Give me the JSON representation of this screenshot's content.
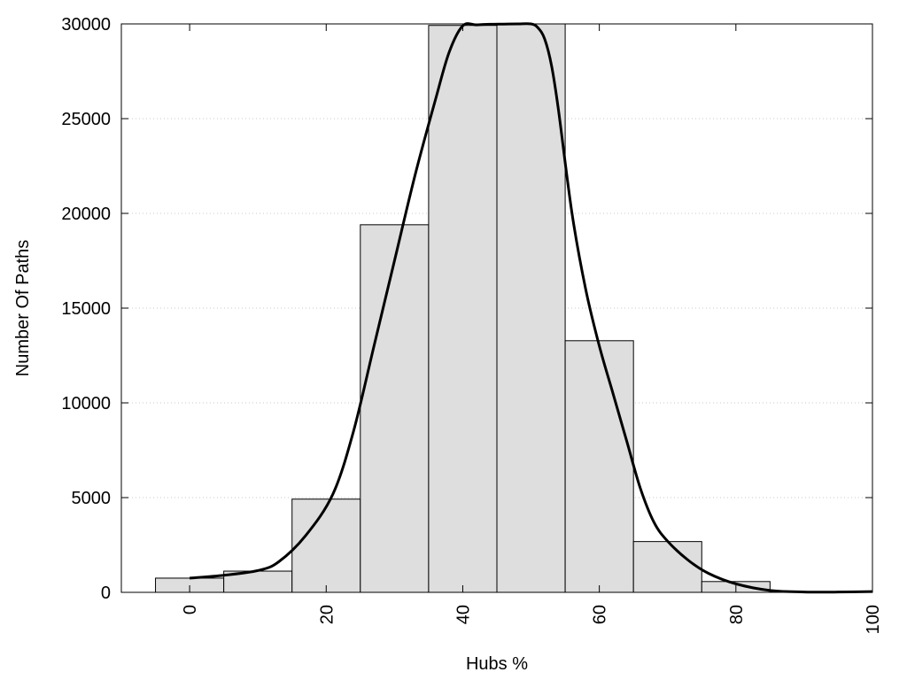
{
  "chart_data": {
    "type": "bar",
    "title": "",
    "xlabel": "Hubs %",
    "ylabel": "Number Of Paths",
    "xlim": [
      -10,
      100
    ],
    "ylim": [
      0,
      30000
    ],
    "grid": true,
    "x_ticks": [
      "0",
      "20",
      "40",
      "60",
      "80",
      "100"
    ],
    "y_ticks": [
      "0",
      "5000",
      "10000",
      "15000",
      "20000",
      "25000",
      "30000"
    ],
    "bin_width": 10,
    "bins": [
      {
        "center": 0,
        "value": 750
      },
      {
        "center": 10,
        "value": 1120
      },
      {
        "center": 20,
        "value": 4920
      },
      {
        "center": 30,
        "value": 19400
      },
      {
        "center": 40,
        "value": 29920
      },
      {
        "center": 50,
        "value": 30000
      },
      {
        "center": 60,
        "value": 13280
      },
      {
        "center": 70,
        "value": 2680
      },
      {
        "center": 80,
        "value": 570
      },
      {
        "center": 90,
        "value": 30
      }
    ],
    "fit_curve": {
      "x": [
        0,
        5,
        10,
        13,
        17,
        21,
        24,
        27,
        30,
        33,
        36,
        38,
        40,
        42,
        44,
        46,
        48,
        50,
        51,
        52,
        53,
        54,
        56,
        58,
        60,
        62,
        64,
        66,
        68,
        70,
        73,
        76,
        80,
        85,
        90,
        95,
        100
      ],
      "y": [
        750,
        900,
        1150,
        1600,
        3000,
        5200,
        8500,
        13000,
        17500,
        22000,
        26000,
        28500,
        29900,
        29950,
        29980,
        29990,
        30000,
        30000,
        29800,
        29200,
        27800,
        25500,
        20000,
        16000,
        13000,
        10500,
        8000,
        5500,
        3700,
        2700,
        1700,
        1000,
        450,
        100,
        20,
        15,
        40
      ]
    }
  }
}
